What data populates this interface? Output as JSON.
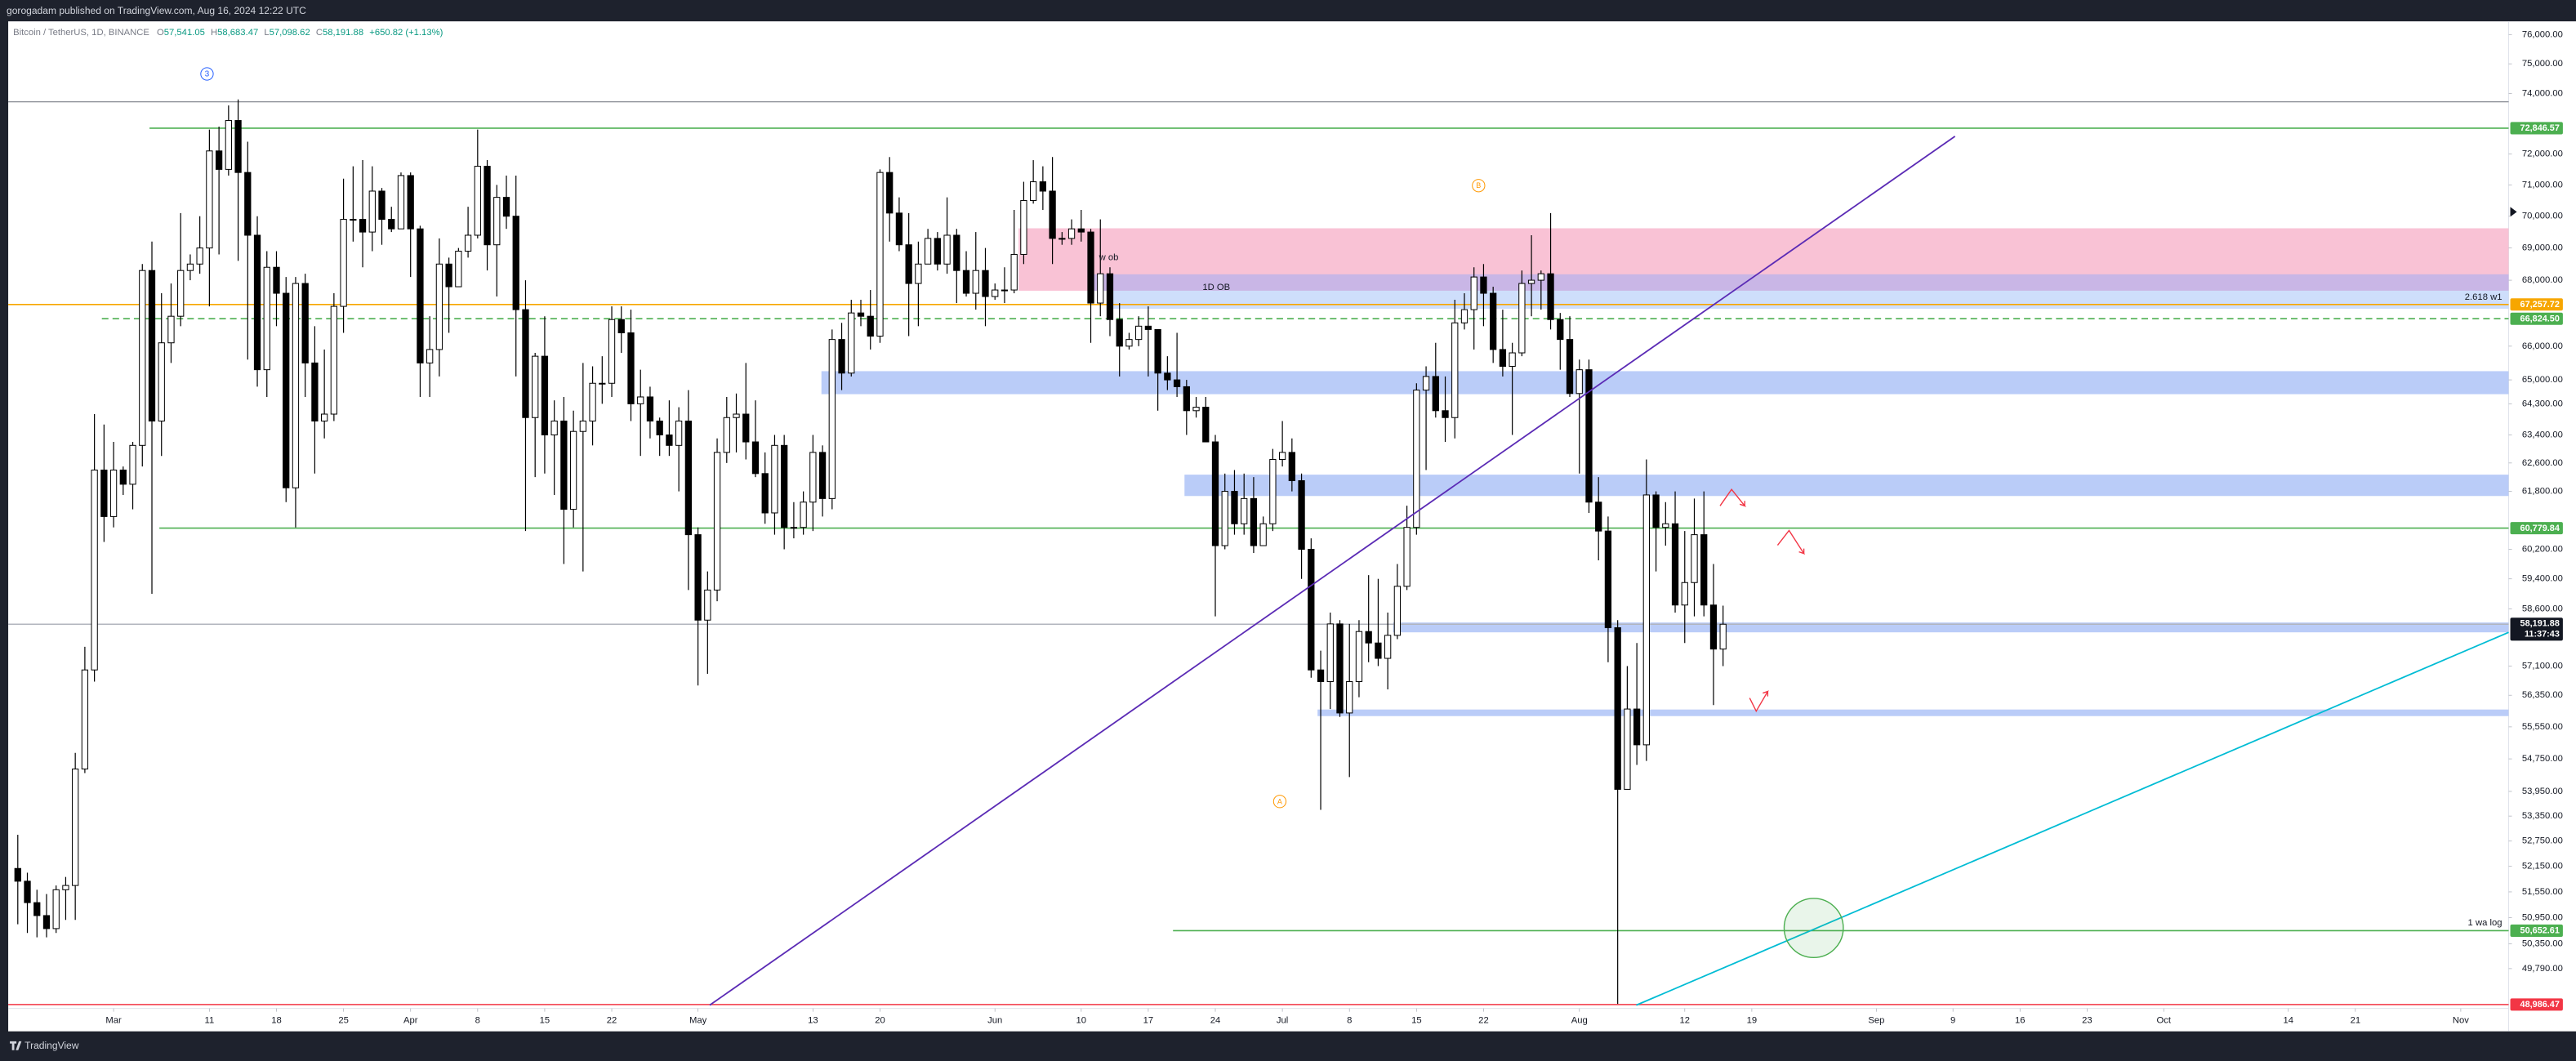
{
  "header": "gorogadam published on TradingView.com, Aug 16, 2024 12:22 UTC",
  "footer": "TradingView",
  "chart_data": {
    "type": "candlestick",
    "title": "Bitcoin / TetherUS, 1D, BINANCE",
    "ohlc_legend": [
      {
        "key": "O",
        "text": "57,541.05"
      },
      {
        "key": "H",
        "text": "58,683.47"
      },
      {
        "key": "L",
        "text": "57,098.62"
      },
      {
        "key": "C",
        "text": "58,191.88"
      }
    ],
    "change": "+650.82 (+1.13%)",
    "up_color": "#ffffff",
    "down_color": "#000000",
    "wick_color": "#000000",
    "log_scale": true,
    "grid": false,
    "ylim": [
      48900,
      76400
    ],
    "xlim": [
      "2024-02-19",
      "2024-11-06"
    ],
    "yticks": [
      {
        "value": 76000,
        "label": "76,000.00"
      },
      {
        "value": 75000,
        "label": "75,000.00"
      },
      {
        "value": 74000,
        "label": "74,000.00"
      },
      {
        "value": 72000,
        "label": "72,000.00"
      },
      {
        "value": 71000,
        "label": "71,000.00"
      },
      {
        "value": 70000,
        "label": "70,000.00"
      },
      {
        "value": 69000,
        "label": "69,000.00"
      },
      {
        "value": 68000,
        "label": "68,000.00"
      },
      {
        "value": 66000,
        "label": "66,000.00"
      },
      {
        "value": 65000,
        "label": "65,000.00"
      },
      {
        "value": 64300,
        "label": "64,300.00"
      },
      {
        "value": 63400,
        "label": "63,400.00"
      },
      {
        "value": 62600,
        "label": "62,600.00"
      },
      {
        "value": 61800,
        "label": "61,800.00"
      },
      {
        "value": 60200,
        "label": "60,200.00"
      },
      {
        "value": 59400,
        "label": "59,400.00"
      },
      {
        "value": 58600,
        "label": "58,600.00"
      },
      {
        "value": 57100,
        "label": "57,100.00"
      },
      {
        "value": 56350,
        "label": "56,350.00"
      },
      {
        "value": 55550,
        "label": "55,550.00"
      },
      {
        "value": 54750,
        "label": "54,750.00"
      },
      {
        "value": 53950,
        "label": "53,950.00"
      },
      {
        "value": 53350,
        "label": "53,350.00"
      },
      {
        "value": 52750,
        "label": "52,750.00"
      },
      {
        "value": 52150,
        "label": "52,150.00"
      },
      {
        "value": 51550,
        "label": "51,550.00"
      },
      {
        "value": 50950,
        "label": "50,950.00"
      },
      {
        "value": 50350,
        "label": "50,350.00"
      },
      {
        "value": 49790,
        "label": "49,790.00"
      }
    ],
    "xticks": [
      {
        "value": "2024-03-01",
        "label": "Mar"
      },
      {
        "value": "2024-03-11",
        "label": "11"
      },
      {
        "value": "2024-03-18",
        "label": "18"
      },
      {
        "value": "2024-03-25",
        "label": "25"
      },
      {
        "value": "2024-04-01",
        "label": "Apr"
      },
      {
        "value": "2024-04-08",
        "label": "8"
      },
      {
        "value": "2024-04-15",
        "label": "15"
      },
      {
        "value": "2024-04-22",
        "label": "22"
      },
      {
        "value": "2024-05-01",
        "label": "May"
      },
      {
        "value": "2024-05-13",
        "label": "13"
      },
      {
        "value": "2024-05-20",
        "label": "20"
      },
      {
        "value": "2024-06-01",
        "label": "Jun"
      },
      {
        "value": "2024-06-10",
        "label": "10"
      },
      {
        "value": "2024-06-17",
        "label": "17"
      },
      {
        "value": "2024-06-24",
        "label": "24"
      },
      {
        "value": "2024-07-01",
        "label": "Jul"
      },
      {
        "value": "2024-07-08",
        "label": "8"
      },
      {
        "value": "2024-07-15",
        "label": "15"
      },
      {
        "value": "2024-07-22",
        "label": "22"
      },
      {
        "value": "2024-08-01",
        "label": "Aug"
      },
      {
        "value": "2024-08-12",
        "label": "12"
      },
      {
        "value": "2024-08-19",
        "label": "19"
      },
      {
        "value": "2024-09-01",
        "label": "Sep"
      },
      {
        "value": "2024-09-09",
        "label": "9"
      },
      {
        "value": "2024-09-16",
        "label": "16"
      },
      {
        "value": "2024-09-23",
        "label": "23"
      },
      {
        "value": "2024-10-01",
        "label": "Oct"
      },
      {
        "value": "2024-10-14",
        "label": "14"
      },
      {
        "value": "2024-10-21",
        "label": "21"
      },
      {
        "value": "2024-11-01",
        "label": "Nov"
      }
    ],
    "levels": [
      {
        "value": 72846.57,
        "label": "72,846.57",
        "color": "#4caf50"
      },
      {
        "value": 67257.72,
        "label": "67,257.72",
        "color": "#f7a600"
      },
      {
        "value": 66824.5,
        "label": "66,824.50",
        "color": "#4caf50",
        "dashed": true
      },
      {
        "value": 60779.84,
        "label": "60,779.84",
        "color": "#4caf50"
      },
      {
        "value": 58191.88,
        "label": "58,191.88",
        "color": "#131722",
        "countdown": "11:37:43"
      },
      {
        "value": 50652.61,
        "label": "50,652.61",
        "color": "#4caf50"
      },
      {
        "value": 48986.47,
        "label": "48,986.47",
        "color": "#f23645"
      }
    ],
    "annotations": {
      "wave_3": "3",
      "wave_b": "B",
      "wave_a": "A",
      "w_ob": "w ob",
      "ob_1d": "1D OB",
      "fib_w1": "2.618 w1",
      "wa_log": "1 wa log"
    },
    "x": [
      "2024-02-20",
      "2024-02-21",
      "2024-02-22",
      "2024-02-23",
      "2024-02-24",
      "2024-02-25",
      "2024-02-26",
      "2024-02-27",
      "2024-02-28",
      "2024-02-29",
      "2024-03-01",
      "2024-03-02",
      "2024-03-03",
      "2024-03-04",
      "2024-03-05",
      "2024-03-06",
      "2024-03-07",
      "2024-03-08",
      "2024-03-09",
      "2024-03-10",
      "2024-03-11",
      "2024-03-12",
      "2024-03-13",
      "2024-03-14",
      "2024-03-15",
      "2024-03-16",
      "2024-03-17",
      "2024-03-18",
      "2024-03-19",
      "2024-03-20",
      "2024-03-21",
      "2024-03-22",
      "2024-03-23",
      "2024-03-24",
      "2024-03-25",
      "2024-03-26",
      "2024-03-27",
      "2024-03-28",
      "2024-03-29",
      "2024-03-30",
      "2024-03-31",
      "2024-04-01",
      "2024-04-02",
      "2024-04-03",
      "2024-04-04",
      "2024-04-05",
      "2024-04-06",
      "2024-04-07",
      "2024-04-08",
      "2024-04-09",
      "2024-04-10",
      "2024-04-11",
      "2024-04-12",
      "2024-04-13",
      "2024-04-14",
      "2024-04-15",
      "2024-04-16",
      "2024-04-17",
      "2024-04-18",
      "2024-04-19",
      "2024-04-20",
      "2024-04-21",
      "2024-04-22",
      "2024-04-23",
      "2024-04-24",
      "2024-04-25",
      "2024-04-26",
      "2024-04-27",
      "2024-04-28",
      "2024-04-29",
      "2024-04-30",
      "2024-05-01",
      "2024-05-02",
      "2024-05-03",
      "2024-05-04",
      "2024-05-05",
      "2024-05-06",
      "2024-05-07",
      "2024-05-08",
      "2024-05-09",
      "2024-05-10",
      "2024-05-11",
      "2024-05-12",
      "2024-05-13",
      "2024-05-14",
      "2024-05-15",
      "2024-05-16",
      "2024-05-17",
      "2024-05-18",
      "2024-05-19",
      "2024-05-20",
      "2024-05-21",
      "2024-05-22",
      "2024-05-23",
      "2024-05-24",
      "2024-05-25",
      "2024-05-26",
      "2024-05-27",
      "2024-05-28",
      "2024-05-29",
      "2024-05-30",
      "2024-05-31",
      "2024-06-01",
      "2024-06-02",
      "2024-06-03",
      "2024-06-04",
      "2024-06-05",
      "2024-06-06",
      "2024-06-07",
      "2024-06-08",
      "2024-06-09",
      "2024-06-10",
      "2024-06-11",
      "2024-06-12",
      "2024-06-13",
      "2024-06-14",
      "2024-06-15",
      "2024-06-16",
      "2024-06-17",
      "2024-06-18",
      "2024-06-19",
      "2024-06-20",
      "2024-06-21",
      "2024-06-22",
      "2024-06-23",
      "2024-06-24",
      "2024-06-25",
      "2024-06-26",
      "2024-06-27",
      "2024-06-28",
      "2024-06-29",
      "2024-06-30",
      "2024-07-01",
      "2024-07-02",
      "2024-07-03",
      "2024-07-04",
      "2024-07-05",
      "2024-07-06",
      "2024-07-07",
      "2024-07-08",
      "2024-07-09",
      "2024-07-10",
      "2024-07-11",
      "2024-07-12",
      "2024-07-13",
      "2024-07-14",
      "2024-07-15",
      "2024-07-16",
      "2024-07-17",
      "2024-07-18",
      "2024-07-19",
      "2024-07-20",
      "2024-07-21",
      "2024-07-22",
      "2024-07-23",
      "2024-07-24",
      "2024-07-25",
      "2024-07-26",
      "2024-07-27",
      "2024-07-28",
      "2024-07-29",
      "2024-07-30",
      "2024-07-31",
      "2024-08-01",
      "2024-08-02",
      "2024-08-03",
      "2024-08-04",
      "2024-08-05",
      "2024-08-06",
      "2024-08-07",
      "2024-08-08",
      "2024-08-09",
      "2024-08-10",
      "2024-08-11",
      "2024-08-12",
      "2024-08-13",
      "2024-08-14",
      "2024-08-15",
      "2024-08-16"
    ],
    "open": [
      52100,
      51800,
      51300,
      51000,
      50700,
      51600,
      51700,
      54500,
      57000,
      62400,
      61100,
      62400,
      62000,
      63100,
      68300,
      63800,
      66100,
      66900,
      68300,
      68500,
      69000,
      72100,
      71500,
      73100,
      71400,
      69400,
      65300,
      68400,
      67600,
      61900,
      67900,
      65500,
      63800,
      64000,
      67200,
      69900,
      69900,
      69500,
      70800,
      69900,
      69600,
      71300,
      69600,
      65500,
      65900,
      68500,
      67800,
      68900,
      69400,
      71600,
      69100,
      70600,
      70000,
      67100,
      63900,
      65700,
      63400,
      63800,
      61300,
      63500,
      63800,
      64900,
      64900,
      66800,
      66400,
      64300,
      64500,
      63800,
      63400,
      63100,
      63800,
      60600,
      58300,
      59100,
      62900,
      63900,
      64000,
      63200,
      62300,
      61200,
      63100,
      60800,
      60800,
      61500,
      62900,
      61600,
      66200,
      65200,
      67000,
      66900,
      66300,
      71400,
      70100,
      69100,
      67900,
      68500,
      69300,
      68500,
      69400,
      68300,
      67600,
      68300,
      67500,
      67700,
      67700,
      68800,
      70500,
      71100,
      70800,
      69300,
      69300,
      69600,
      69500,
      67300,
      68200,
      66800,
      66000,
      66200,
      66600,
      66500,
      65200,
      65000,
      64800,
      64100,
      64200,
      63200,
      60300,
      61800,
      60900,
      61600,
      60300,
      60900,
      62700,
      62900,
      62100,
      60200,
      57000,
      56700,
      58200,
      55900,
      56700,
      58000,
      57700,
      57300,
      57900,
      59200,
      60800,
      64700,
      65100,
      64100,
      63900,
      66700,
      67100,
      68100,
      67600,
      65900,
      65400,
      65800,
      67900,
      68000,
      68200,
      66800,
      66200,
      64600,
      65300,
      61500,
      60700,
      58100,
      54000,
      56000,
      55100,
      61700,
      60800,
      60900,
      58700,
      59300,
      60600,
      58700,
      57541.05
    ],
    "high": [
      52900,
      52000,
      51600,
      51500,
      51700,
      51900,
      54900,
      57600,
      64000,
      63700,
      63200,
      62500,
      63200,
      68500,
      69200,
      67600,
      67900,
      70100,
      68800,
      70000,
      72800,
      72900,
      73600,
      73800,
      72400,
      70000,
      68900,
      68900,
      68100,
      68100,
      68200,
      66600,
      65900,
      67600,
      71200,
      71600,
      71800,
      71600,
      70900,
      70300,
      71400,
      71400,
      69700,
      66900,
      69300,
      68700,
      69000,
      70300,
      72800,
      71800,
      71000,
      71300,
      71300,
      68000,
      65800,
      66900,
      64400,
      64500,
      64100,
      65500,
      65400,
      65700,
      67200,
      67200,
      67100,
      65300,
      64800,
      63900,
      64400,
      64200,
      64700,
      60800,
      59600,
      63300,
      64500,
      64600,
      65500,
      64400,
      62900,
      63400,
      63400,
      61500,
      61800,
      63400,
      63100,
      66500,
      66700,
      67400,
      67400,
      67700,
      71500,
      71900,
      70600,
      70100,
      69200,
      69600,
      69500,
      70600,
      69600,
      68900,
      69500,
      69000,
      67900,
      68400,
      70200,
      71100,
      71800,
      71600,
      71900,
      69500,
      69900,
      70200,
      69600,
      69900,
      68400,
      67300,
      66400,
      66900,
      67200,
      66500,
      65700,
      66400,
      65000,
      64500,
      64500,
      63400,
      62300,
      62400,
      62300,
      62200,
      61100,
      63000,
      63800,
      63300,
      62300,
      60500,
      57500,
      58500,
      58300,
      58200,
      58300,
      59500,
      59400,
      58500,
      59800,
      61400,
      64900,
      65400,
      66100,
      65100,
      67400,
      67600,
      68400,
      68500,
      67800,
      67100,
      66100,
      68300,
      69400,
      68300,
      70100,
      67000,
      66900,
      65600,
      65600,
      62200,
      61100,
      58300,
      57100,
      57700,
      62700,
      61800,
      61500,
      61800,
      60700,
      61600,
      61800,
      59800,
      58683.47
    ],
    "low": [
      50800,
      50600,
      50500,
      50500,
      50600,
      50900,
      50900,
      54400,
      56700,
      60400,
      60800,
      61700,
      61300,
      62500,
      59000,
      62800,
      65500,
      66600,
      68000,
      68200,
      67200,
      68800,
      71300,
      68600,
      65600,
      64800,
      64500,
      66600,
      61500,
      60800,
      64500,
      62300,
      63300,
      63800,
      66400,
      69200,
      68400,
      68900,
      69100,
      69500,
      69600,
      68100,
      64500,
      64500,
      65100,
      66400,
      67800,
      68700,
      69300,
      68300,
      67500,
      69600,
      65100,
      60700,
      62200,
      62300,
      61700,
      59800,
      60800,
      59600,
      63100,
      64300,
      64500,
      65800,
      63800,
      62800,
      63300,
      62800,
      62800,
      61800,
      59100,
      56600,
      56900,
      58800,
      62600,
      62900,
      62700,
      62200,
      60900,
      60600,
      60200,
      60500,
      60600,
      60700,
      61100,
      61300,
      64700,
      65100,
      66600,
      65900,
      66100,
      69200,
      68900,
      66300,
      66600,
      68500,
      68300,
      68200,
      67300,
      67500,
      67100,
      66600,
      67400,
      67300,
      67600,
      68500,
      70400,
      70200,
      68500,
      69100,
      69100,
      69200,
      66100,
      66900,
      66300,
      65100,
      65900,
      66000,
      65100,
      64100,
      64700,
      64500,
      63400,
      63900,
      63200,
      58400,
      60200,
      60600,
      60600,
      60100,
      60300,
      60700,
      62500,
      61800,
      59400,
      56800,
      53500,
      56000,
      55800,
      54300,
      56300,
      57200,
      57100,
      56500,
      57800,
      59100,
      60600,
      62400,
      63900,
      63200,
      63300,
      66500,
      65900,
      66600,
      65500,
      65100,
      63400,
      65700,
      66900,
      67100,
      66500,
      65300,
      64500,
      62300,
      61200,
      59900,
      57200,
      49000,
      54000,
      54600,
      54700,
      59600,
      60300,
      58500,
      57700,
      58400,
      58400,
      56100,
      57098.62
    ],
    "close": [
      51800,
      51300,
      51000,
      50700,
      51600,
      51700,
      54500,
      57000,
      62400,
      61100,
      62400,
      62000,
      63100,
      68300,
      63800,
      66100,
      66900,
      68300,
      68500,
      69000,
      72100,
      71500,
      73100,
      71400,
      69400,
      65300,
      68400,
      67600,
      61900,
      67900,
      65500,
      63800,
      64000,
      67200,
      69900,
      69900,
      69500,
      70800,
      69900,
      69600,
      71300,
      69600,
      65500,
      65900,
      68500,
      67800,
      68900,
      69400,
      71600,
      69100,
      70600,
      70000,
      67100,
      63900,
      65700,
      63400,
      63800,
      61300,
      63500,
      63800,
      64900,
      64900,
      66800,
      66400,
      64300,
      64500,
      63800,
      63400,
      63100,
      63800,
      60600,
      58300,
      59100,
      62900,
      63900,
      64000,
      63200,
      62300,
      61200,
      63100,
      60800,
      60800,
      61500,
      62900,
      61600,
      66200,
      65200,
      67000,
      66900,
      66300,
      71400,
      70100,
      69100,
      67900,
      68500,
      69300,
      68500,
      69400,
      68300,
      67600,
      68300,
      67500,
      67700,
      67700,
      68800,
      70500,
      71100,
      70800,
      69300,
      69300,
      69600,
      69500,
      67300,
      68200,
      66800,
      66000,
      66200,
      66600,
      66500,
      65200,
      65000,
      64800,
      64100,
      64200,
      63200,
      60300,
      61800,
      60900,
      61600,
      60300,
      60900,
      62700,
      62900,
      62100,
      60200,
      57000,
      56700,
      58200,
      55900,
      56700,
      58000,
      57700,
      57300,
      57900,
      59200,
      60800,
      64700,
      65100,
      64100,
      63900,
      66700,
      67100,
      68100,
      67600,
      65900,
      65400,
      65800,
      67900,
      68000,
      68200,
      66800,
      66200,
      64600,
      65300,
      61500,
      60700,
      58100,
      54000,
      56000,
      55100,
      61700,
      60800,
      60900,
      58700,
      59300,
      60600,
      58700,
      57541.05,
      58191.88
    ]
  }
}
